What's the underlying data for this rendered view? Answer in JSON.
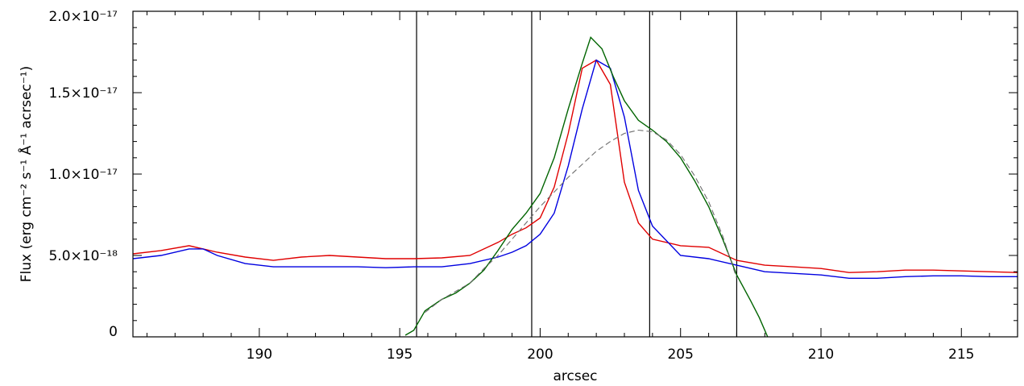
{
  "chart_data": {
    "type": "line",
    "xlabel": "arcsec",
    "ylabel": "Flux (erg cm⁻² s⁻¹ Å⁻¹ acrsec⁻¹)",
    "xlim": [
      185.5,
      217.0
    ],
    "ylim": [
      0,
      2e-17
    ],
    "x_ticks": [
      {
        "value": 190,
        "label": "190"
      },
      {
        "value": 195,
        "label": "195"
      },
      {
        "value": 200,
        "label": "200"
      },
      {
        "value": 205,
        "label": "205"
      },
      {
        "value": 210,
        "label": "210"
      },
      {
        "value": 215,
        "label": "215"
      }
    ],
    "y_ticks": [
      {
        "value": 0,
        "label": "0"
      },
      {
        "value": 5e-18,
        "label": "5.0×10⁻¹⁸"
      },
      {
        "value": 1e-17,
        "label": "1.0×10⁻¹⁷"
      },
      {
        "value": 1.5e-17,
        "label": "1.5×10⁻¹⁷"
      },
      {
        "value": 2e-17,
        "label": "2.0×10⁻¹⁷"
      }
    ],
    "vertical_lines": [
      195.6,
      199.7,
      203.9,
      207.0
    ],
    "series": [
      {
        "color": "#e00000",
        "style": "solid",
        "x": [
          185.5,
          186.5,
          187.5,
          188.5,
          189.5,
          190.5,
          191.5,
          192.5,
          193.5,
          194.5,
          195.5,
          196.5,
          197.5,
          198.5,
          199.0,
          199.5,
          200.0,
          200.5,
          201.0,
          201.5,
          202.0,
          202.5,
          203.0,
          203.5,
          204.0,
          205.0,
          206.0,
          207.0,
          208.0,
          209.0,
          210.0,
          211.0,
          212.0,
          213.0,
          214.0,
          215.0,
          216.0,
          217.0
        ],
        "y": [
          5.1e-18,
          5.3e-18,
          5.6e-18,
          5.2e-18,
          4.9e-18,
          4.7e-18,
          4.9e-18,
          5e-18,
          4.9e-18,
          4.8e-18,
          4.8e-18,
          4.85e-18,
          5e-18,
          5.8e-18,
          6.3e-18,
          6.7e-18,
          7.3e-18,
          9.2e-18,
          1.25e-17,
          1.65e-17,
          1.7e-17,
          1.55e-17,
          9.5e-18,
          7e-18,
          6e-18,
          5.6e-18,
          5.5e-18,
          4.7e-18,
          4.4e-18,
          4.3e-18,
          4.2e-18,
          3.95e-18,
          4e-18,
          4.1e-18,
          4.1e-18,
          4.05e-18,
          4e-18,
          3.95e-18
        ]
      },
      {
        "color": "#0000e0",
        "style": "solid",
        "x": [
          185.5,
          186.5,
          187.5,
          188.0,
          188.5,
          189.5,
          190.5,
          191.5,
          192.5,
          193.5,
          194.5,
          195.5,
          196.5,
          197.5,
          198.5,
          199.0,
          199.5,
          200.0,
          200.5,
          201.0,
          201.5,
          202.0,
          202.5,
          203.0,
          203.5,
          204.0,
          205.0,
          206.0,
          207.0,
          208.0,
          209.0,
          210.0,
          211.0,
          212.0,
          213.0,
          214.0,
          215.0,
          216.0,
          217.0
        ],
        "y": [
          4.8e-18,
          5e-18,
          5.4e-18,
          5.4e-18,
          5e-18,
          4.5e-18,
          4.3e-18,
          4.3e-18,
          4.3e-18,
          4.3e-18,
          4.25e-18,
          4.3e-18,
          4.3e-18,
          4.5e-18,
          4.9e-18,
          5.2e-18,
          5.6e-18,
          6.3e-18,
          7.6e-18,
          1.05e-17,
          1.4e-17,
          1.7e-17,
          1.65e-17,
          1.35e-17,
          9e-18,
          6.8e-18,
          5e-18,
          4.8e-18,
          4.4e-18,
          4e-18,
          3.9e-18,
          3.8e-18,
          3.6e-18,
          3.6e-18,
          3.7e-18,
          3.75e-18,
          3.75e-18,
          3.7e-18,
          3.7e-18
        ]
      },
      {
        "color": "#006400",
        "style": "solid",
        "x": [
          195.2,
          195.5,
          195.9,
          196.5,
          197.0,
          197.5,
          198.0,
          198.5,
          199.0,
          199.5,
          200.0,
          200.5,
          201.0,
          201.5,
          201.8,
          202.2,
          202.6,
          203.0,
          203.5,
          204.0,
          204.5,
          205.0,
          205.5,
          206.0,
          206.5,
          207.0,
          207.5,
          207.8,
          208.1
        ],
        "y": [
          1e-19,
          4e-19,
          1.6e-18,
          2.3e-18,
          2.7e-18,
          3.3e-18,
          4.1e-18,
          5.3e-18,
          6.6e-18,
          7.6e-18,
          8.8e-18,
          1.1e-17,
          1.4e-17,
          1.68e-17,
          1.84e-17,
          1.77e-17,
          1.6e-17,
          1.45e-17,
          1.33e-17,
          1.27e-17,
          1.2e-17,
          1.1e-17,
          9.6e-18,
          8e-18,
          6e-18,
          3.8e-18,
          2.2e-18,
          1.2e-18,
          0
        ]
      },
      {
        "color": "#6e6e6e",
        "style": "dashed",
        "x": [
          195.9,
          196.5,
          197.0,
          197.5,
          198.0,
          198.5,
          199.0,
          199.5,
          200.0,
          200.5,
          201.0,
          201.5,
          202.0,
          202.5,
          203.0,
          203.5,
          204.0,
          204.5,
          205.0,
          205.5,
          206.0,
          206.5,
          207.0
        ],
        "y": [
          1.5e-18,
          2.3e-18,
          2.8e-18,
          3.3e-18,
          4.2e-18,
          5e-18,
          6e-18,
          7e-18,
          8e-18,
          8.9e-18,
          9.8e-18,
          1.06e-17,
          1.14e-17,
          1.2e-17,
          1.25e-17,
          1.27e-17,
          1.26e-17,
          1.21e-17,
          1.12e-17,
          9.9e-18,
          8.3e-18,
          6.2e-18,
          3.6e-18
        ]
      }
    ]
  }
}
